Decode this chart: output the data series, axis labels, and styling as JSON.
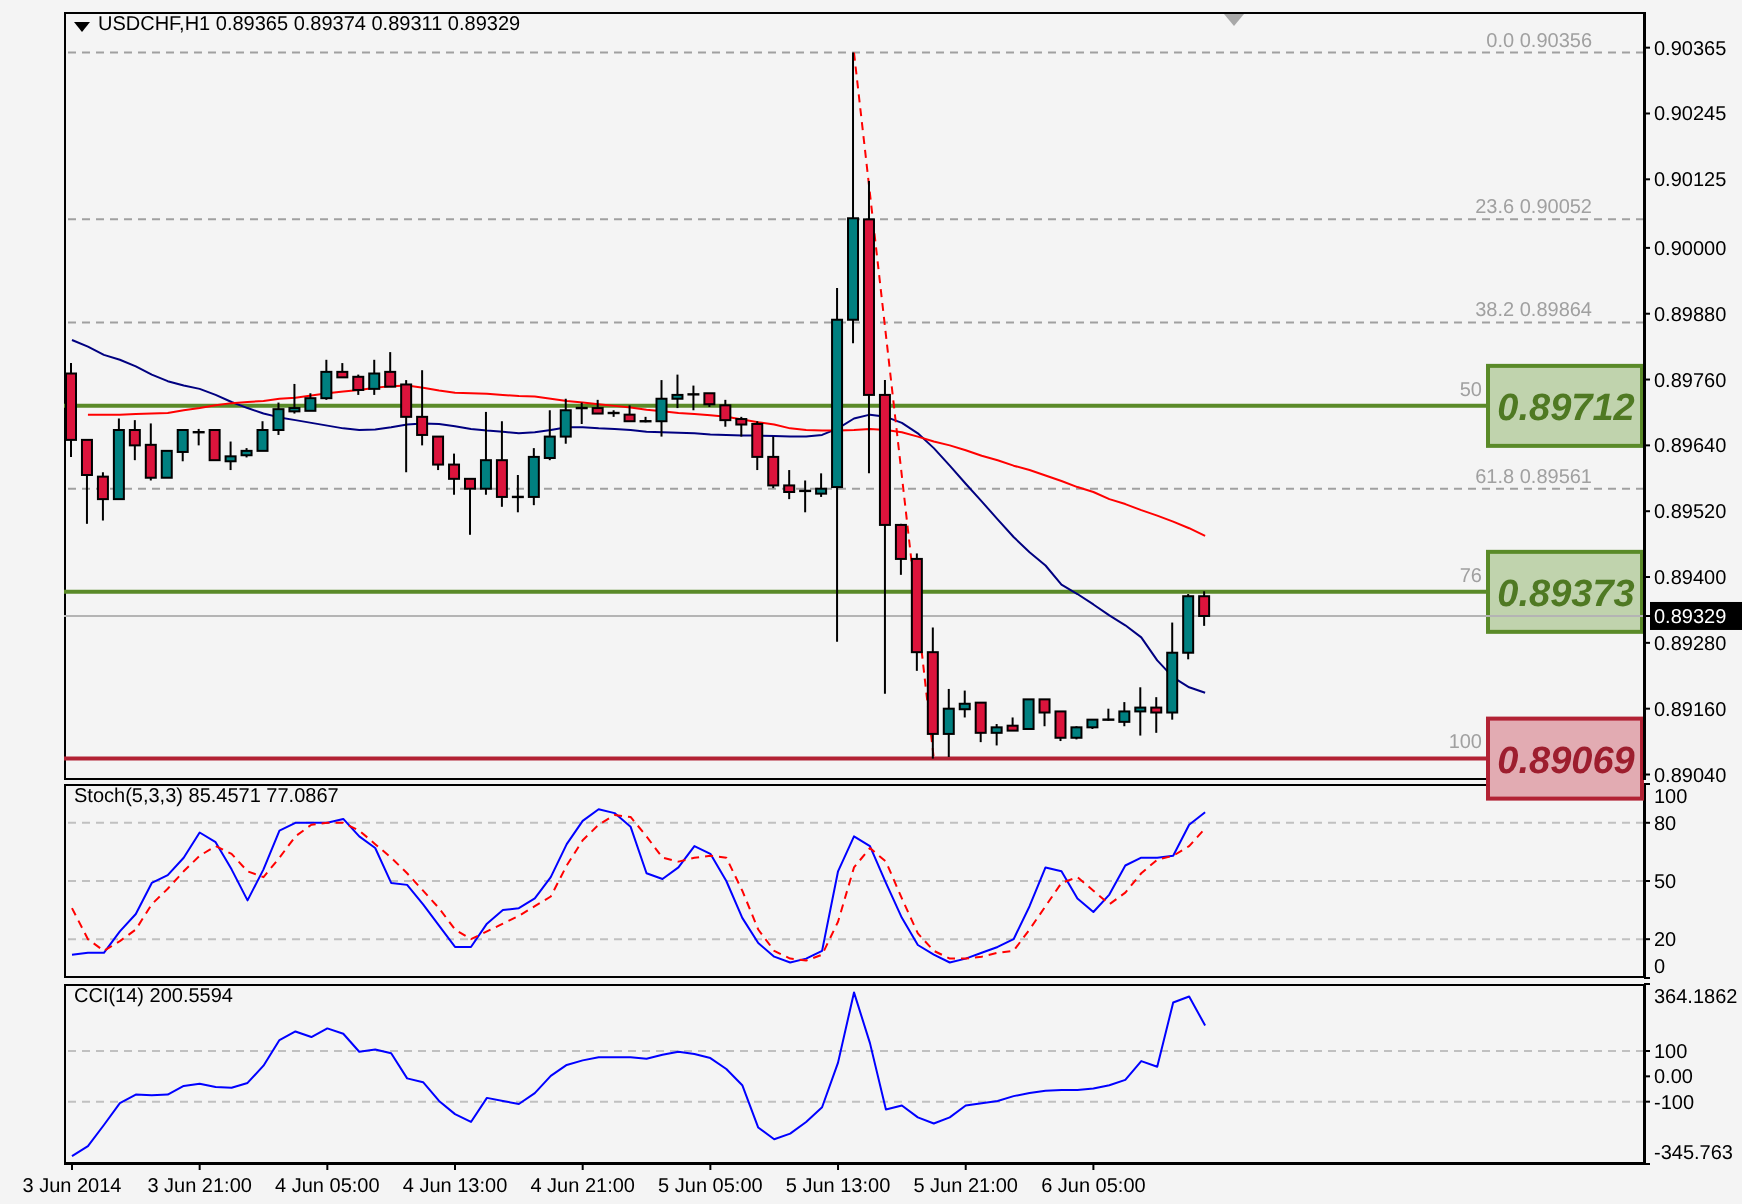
{
  "chart_data": [
    {
      "type": "candlestick",
      "title": "USDCHF,H1 0.89365 0.89374 0.89311 0.89329",
      "x": [
        "2014-06-03T13:00",
        "2014-06-03T14:00",
        "2014-06-03T15:00",
        "2014-06-03T16:00",
        "2014-06-03T17:00",
        "2014-06-03T18:00",
        "2014-06-03T19:00",
        "2014-06-03T20:00",
        "2014-06-03T21:00",
        "2014-06-03T22:00",
        "2014-06-03T23:00",
        "2014-06-04T00:00",
        "2014-06-04T01:00",
        "2014-06-04T02:00",
        "2014-06-04T03:00",
        "2014-06-04T04:00",
        "2014-06-04T05:00",
        "2014-06-04T06:00",
        "2014-06-04T07:00",
        "2014-06-04T08:00",
        "2014-06-04T09:00",
        "2014-06-04T10:00",
        "2014-06-04T11:00",
        "2014-06-04T12:00",
        "2014-06-04T13:00",
        "2014-06-04T14:00",
        "2014-06-04T15:00",
        "2014-06-04T16:00",
        "2014-06-04T17:00",
        "2014-06-04T18:00",
        "2014-06-04T19:00",
        "2014-06-04T20:00",
        "2014-06-04T21:00",
        "2014-06-04T22:00",
        "2014-06-04T23:00",
        "2014-06-05T00:00",
        "2014-06-05T01:00",
        "2014-06-05T02:00",
        "2014-06-05T03:00",
        "2014-06-05T04:00",
        "2014-06-05T05:00",
        "2014-06-05T06:00",
        "2014-06-05T07:00",
        "2014-06-05T08:00",
        "2014-06-05T09:00",
        "2014-06-05T10:00",
        "2014-06-05T11:00",
        "2014-06-05T12:00",
        "2014-06-05T13:00",
        "2014-06-05T14:00",
        "2014-06-05T15:00",
        "2014-06-05T16:00",
        "2014-06-05T17:00",
        "2014-06-05T18:00",
        "2014-06-05T19:00",
        "2014-06-05T20:00",
        "2014-06-05T21:00",
        "2014-06-05T22:00",
        "2014-06-05T23:00",
        "2014-06-06T00:00",
        "2014-06-06T01:00",
        "2014-06-06T02:00",
        "2014-06-06T03:00",
        "2014-06-06T04:00",
        "2014-06-06T05:00",
        "2014-06-06T06:00",
        "2014-06-06T07:00",
        "2014-06-06T08:00",
        "2014-06-06T09:00",
        "2014-06-06T10:00",
        "2014-06-06T11:00",
        "2014-06-06T12:00"
      ],
      "ohlc": [
        [
          0.89771,
          0.8979,
          0.89619,
          0.8965
        ],
        [
          0.8965,
          0.8965,
          0.89497,
          0.89586
        ],
        [
          0.89583,
          0.89591,
          0.89503,
          0.89542
        ],
        [
          0.89542,
          0.89689,
          0.89542,
          0.89668
        ],
        [
          0.89668,
          0.89686,
          0.89613,
          0.8964
        ],
        [
          0.89641,
          0.8968,
          0.89576,
          0.89581
        ],
        [
          0.89581,
          0.8963,
          0.89581,
          0.8963
        ],
        [
          0.89628,
          0.89668,
          0.89611,
          0.89668
        ],
        [
          0.89664,
          0.8967,
          0.8964,
          0.89664
        ],
        [
          0.89668,
          0.89668,
          0.89613,
          0.89613
        ],
        [
          0.89611,
          0.89647,
          0.89595,
          0.8962
        ],
        [
          0.89622,
          0.89635,
          0.89618,
          0.8963
        ],
        [
          0.8963,
          0.89684,
          0.8963,
          0.89668
        ],
        [
          0.89668,
          0.89718,
          0.89659,
          0.89706
        ],
        [
          0.89702,
          0.89752,
          0.89698,
          0.89708
        ],
        [
          0.89703,
          0.89735,
          0.89703,
          0.89726
        ],
        [
          0.89726,
          0.89796,
          0.89723,
          0.89774
        ],
        [
          0.89774,
          0.8979,
          0.89764,
          0.89764
        ],
        [
          0.89765,
          0.89769,
          0.89732,
          0.89741
        ],
        [
          0.89743,
          0.89796,
          0.89732,
          0.89771
        ],
        [
          0.89774,
          0.8981,
          0.89747,
          0.89747
        ],
        [
          0.89751,
          0.89759,
          0.89591,
          0.89692
        ],
        [
          0.89692,
          0.89777,
          0.8964,
          0.89659
        ],
        [
          0.89656,
          0.89656,
          0.89595,
          0.89605
        ],
        [
          0.89605,
          0.89625,
          0.8955,
          0.89579
        ],
        [
          0.89579,
          0.89579,
          0.89477,
          0.89561
        ],
        [
          0.89561,
          0.89701,
          0.8955,
          0.89613
        ],
        [
          0.89613,
          0.89684,
          0.89528,
          0.89546
        ],
        [
          0.89546,
          0.89586,
          0.89518,
          0.89546
        ],
        [
          0.89546,
          0.89635,
          0.89531,
          0.89619
        ],
        [
          0.89617,
          0.89704,
          0.89613,
          0.89656
        ],
        [
          0.89656,
          0.89725,
          0.89643,
          0.89704
        ],
        [
          0.89706,
          0.89718,
          0.89679,
          0.89708
        ],
        [
          0.89708,
          0.89723,
          0.89698,
          0.89698
        ],
        [
          0.89699,
          0.89704,
          0.89692,
          0.89696
        ],
        [
          0.89696,
          0.89713,
          0.89684,
          0.89684
        ],
        [
          0.89684,
          0.89692,
          0.89682,
          0.89684
        ],
        [
          0.89684,
          0.89759,
          0.89656,
          0.89725
        ],
        [
          0.89725,
          0.89769,
          0.89708,
          0.89732
        ],
        [
          0.89732,
          0.89749,
          0.89704,
          0.89733
        ],
        [
          0.89735,
          0.89735,
          0.8971,
          0.89715
        ],
        [
          0.89713,
          0.89723,
          0.89674,
          0.89686
        ],
        [
          0.89688,
          0.89692,
          0.89656,
          0.89678
        ],
        [
          0.89679,
          0.89684,
          0.89595,
          0.89619
        ],
        [
          0.89619,
          0.89656,
          0.89562,
          0.89567
        ],
        [
          0.89567,
          0.89595,
          0.89542,
          0.89555
        ],
        [
          0.89555,
          0.89576,
          0.89518,
          0.89557
        ],
        [
          0.89552,
          0.89589,
          0.89546,
          0.89561
        ],
        [
          0.89564,
          0.89927,
          0.89282,
          0.89869
        ],
        [
          0.89869,
          0.90356,
          0.89826,
          0.90054
        ],
        [
          0.90052,
          0.90122,
          0.89589,
          0.89732
        ],
        [
          0.89732,
          0.89759,
          0.89187,
          0.89495
        ],
        [
          0.89495,
          0.89497,
          0.89404,
          0.89433
        ],
        [
          0.89433,
          0.89443,
          0.89229,
          0.89263
        ],
        [
          0.89263,
          0.89308,
          0.89069,
          0.89114
        ],
        [
          0.89114,
          0.89196,
          0.89072,
          0.8916
        ],
        [
          0.89159,
          0.89193,
          0.89144,
          0.89169
        ],
        [
          0.89171,
          0.89171,
          0.89099,
          0.89116
        ],
        [
          0.89116,
          0.89132,
          0.89093,
          0.89126
        ],
        [
          0.89129,
          0.89144,
          0.8912,
          0.8912
        ],
        [
          0.89123,
          0.89177,
          0.89123,
          0.89177
        ],
        [
          0.89177,
          0.89177,
          0.89128,
          0.89153
        ],
        [
          0.89155,
          0.89155,
          0.89101,
          0.89107
        ],
        [
          0.89107,
          0.89128,
          0.89104,
          0.89126
        ],
        [
          0.89126,
          0.8914,
          0.89123,
          0.8914
        ],
        [
          0.8914,
          0.8916,
          0.89138,
          0.8914
        ],
        [
          0.89136,
          0.89172,
          0.89128,
          0.89155
        ],
        [
          0.89155,
          0.89199,
          0.89111,
          0.89162
        ],
        [
          0.89162,
          0.89181,
          0.89116,
          0.89153
        ],
        [
          0.89153,
          0.89317,
          0.8914,
          0.89262
        ],
        [
          0.89262,
          0.89369,
          0.8925,
          0.89365
        ],
        [
          0.89365,
          0.89374,
          0.89311,
          0.89329
        ]
      ],
      "colors": [
        "#dc143c",
        "#dc143c",
        "#dc143c",
        "#008080",
        "#dc143c",
        "#dc143c",
        "#008080",
        "#008080",
        "#000000",
        "#dc143c",
        "#008080",
        "#008080",
        "#008080",
        "#008080",
        "#008080",
        "#008080",
        "#008080",
        "#dc143c",
        "#dc143c",
        "#008080",
        "#dc143c",
        "#dc143c",
        "#dc143c",
        "#dc143c",
        "#dc143c",
        "#dc143c",
        "#008080",
        "#dc143c",
        "#000000",
        "#008080",
        "#008080",
        "#008080",
        "#000000",
        "#dc143c",
        "#000000",
        "#dc143c",
        "#000000",
        "#008080",
        "#008080",
        "#000000",
        "#dc143c",
        "#dc143c",
        "#dc143c",
        "#dc143c",
        "#dc143c",
        "#dc143c",
        "#000000",
        "#008080",
        "#008080",
        "#008080",
        "#dc143c",
        "#dc143c",
        "#dc143c",
        "#dc143c",
        "#dc143c",
        "#008080",
        "#008080",
        "#dc143c",
        "#008080",
        "#dc143c",
        "#008080",
        "#dc143c",
        "#dc143c",
        "#008080",
        "#008080",
        "#000000",
        "#008080",
        "#008080",
        "#dc143c",
        "#008080",
        "#008080",
        "#dc143c"
      ],
      "series": [
        {
          "type": "line",
          "color": "#000080",
          "values": [
            0.89832,
            0.8982,
            0.89805,
            0.89796,
            0.89784,
            0.89769,
            0.89757,
            0.89749,
            0.89743,
            0.89732,
            0.89719,
            0.89708,
            0.89698,
            0.89691,
            0.89686,
            0.89681,
            0.89676,
            0.89671,
            0.89668,
            0.89669,
            0.89673,
            0.89678,
            0.8968,
            0.89679,
            0.89675,
            0.8967,
            0.89667,
            0.89665,
            0.89662,
            0.89664,
            0.89668,
            0.89673,
            0.89673,
            0.89671,
            0.8967,
            0.89668,
            0.89665,
            0.89664,
            0.89663,
            0.89662,
            0.8966,
            0.89659,
            0.89658,
            0.89658,
            0.89657,
            0.89656,
            0.89656,
            0.89659,
            0.89671,
            0.89689,
            0.89696,
            0.89692,
            0.89681,
            0.89662,
            0.89635,
            0.89603,
            0.8957,
            0.89538,
            0.89505,
            0.89473,
            0.89445,
            0.89421,
            0.89386,
            0.89369,
            0.8935,
            0.8933,
            0.89312,
            0.8929,
            0.89248,
            0.89217,
            0.89199,
            0.89189
          ]
        },
        {
          "type": "line",
          "color": "#ff0000",
          "values": [
            null,
            0.89696,
            0.89696,
            0.89696,
            0.89697,
            0.89698,
            0.89699,
            0.89704,
            0.89708,
            0.89713,
            0.89717,
            0.89719,
            0.89721,
            0.89725,
            0.89727,
            0.89731,
            0.89735,
            0.89738,
            0.89741,
            0.89745,
            0.89748,
            0.89749,
            0.89745,
            0.8974,
            0.89736,
            0.89735,
            0.89734,
            0.89732,
            0.8973,
            0.89729,
            0.89725,
            0.89721,
            0.89718,
            0.89715,
            0.89712,
            0.89709,
            0.89705,
            0.89702,
            0.89699,
            0.89697,
            0.89695,
            0.89692,
            0.89687,
            0.89682,
            0.89678,
            0.89671,
            0.89668,
            0.89667,
            0.89667,
            0.89668,
            0.8967,
            0.89668,
            0.89664,
            0.89656,
            0.89647,
            0.8964,
            0.89631,
            0.89621,
            0.89613,
            0.89603,
            0.89595,
            0.89585,
            0.89575,
            0.89564,
            0.89555,
            0.89542,
            0.89533,
            0.89522,
            0.89512,
            0.89501,
            0.89489,
            0.89475
          ]
        },
        {
          "type": "line",
          "color": "#ff0000",
          "line_style": "dashed",
          "x": [
            "2014-06-05T14:00",
            "2014-06-05T19:00"
          ],
          "values": [
            0.90356,
            0.89069
          ]
        }
      ],
      "xlim": [
        "2014-06-03T12:30",
        "2014-06-07T15:30"
      ],
      "ylim": [
        0.8903,
        0.9043
      ],
      "yticks": [
        {
          "value": 0.8904,
          "label": "0.89040"
        },
        {
          "value": 0.8916,
          "label": "0.89160"
        },
        {
          "value": 0.8928,
          "label": "0.89280"
        },
        0.89329,
        {
          "value": 0.894,
          "label": "0.89400"
        },
        {
          "value": 0.8952,
          "label": "0.89520"
        },
        {
          "value": 0.8964,
          "label": "0.89640"
        },
        {
          "value": 0.8976,
          "label": "0.89760"
        },
        {
          "value": 0.8988,
          "label": "0.89880"
        },
        {
          "value": 0.9,
          "label": "0.90000"
        },
        0.90125,
        0.90245,
        0.90365
      ],
      "tick_labels": "y",
      "ref_lines": [
        {
          "axis": "y",
          "value": 0.90356,
          "label": "0.0 0.90356",
          "color": "#a0a0a0",
          "line_style": "dashed"
        },
        {
          "axis": "y",
          "value": 0.90052,
          "label": "23.6 0.90052",
          "color": "#a0a0a0",
          "line_style": "dashed"
        },
        {
          "axis": "y",
          "value": 0.89864,
          "label": "38.2 0.89864",
          "color": "#a0a0a0",
          "line_style": "dashed"
        },
        {
          "axis": "y",
          "value": 0.89561,
          "label": "61.8 0.89561",
          "color": "#a0a0a0",
          "line_style": "dashed"
        },
        {
          "axis": "y",
          "value": 0.89712,
          "label": "0.89712",
          "color": "#5a8a28"
        },
        {
          "axis": "y",
          "value": 0.89373,
          "label": "0.89373",
          "color": "#5a8a28"
        },
        {
          "axis": "y",
          "value": 0.89069,
          "label": "0.89069",
          "color": "#b22234"
        },
        {
          "axis": "y",
          "value": 0.89329,
          "color": "#b4b4b4"
        }
      ],
      "annotations": [
        {
          "text": "50",
          "y": 0.89712
        },
        {
          "text": "76",
          "y": 0.89373
        },
        {
          "text": "100",
          "y": 0.89069
        }
      ]
    },
    {
      "type": "line",
      "title": "Stoch(5,3,3) 85.4571 77.0867",
      "x": [
        "2014-06-03T13:00",
        "2014-06-03T14:00",
        "2014-06-03T15:00",
        "2014-06-03T16:00",
        "2014-06-03T17:00",
        "2014-06-03T18:00",
        "2014-06-03T19:00",
        "2014-06-03T20:00",
        "2014-06-03T21:00",
        "2014-06-03T22:00",
        "2014-06-03T23:00",
        "2014-06-04T00:00",
        "2014-06-04T01:00",
        "2014-06-04T02:00",
        "2014-06-04T03:00",
        "2014-06-04T04:00",
        "2014-06-04T05:00",
        "2014-06-04T06:00",
        "2014-06-04T07:00",
        "2014-06-04T08:00",
        "2014-06-04T09:00",
        "2014-06-04T10:00",
        "2014-06-04T11:00",
        "2014-06-04T12:00",
        "2014-06-04T13:00",
        "2014-06-04T14:00",
        "2014-06-04T15:00",
        "2014-06-04T16:00",
        "2014-06-04T17:00",
        "2014-06-04T18:00",
        "2014-06-04T19:00",
        "2014-06-04T20:00",
        "2014-06-04T21:00",
        "2014-06-04T22:00",
        "2014-06-04T23:00",
        "2014-06-05T00:00",
        "2014-06-05T01:00",
        "2014-06-05T02:00",
        "2014-06-05T03:00",
        "2014-06-05T04:00",
        "2014-06-05T05:00",
        "2014-06-05T06:00",
        "2014-06-05T07:00",
        "2014-06-05T08:00",
        "2014-06-05T09:00",
        "2014-06-05T10:00",
        "2014-06-05T11:00",
        "2014-06-05T12:00",
        "2014-06-05T13:00",
        "2014-06-05T14:00",
        "2014-06-05T15:00",
        "2014-06-05T16:00",
        "2014-06-05T17:00",
        "2014-06-05T18:00",
        "2014-06-05T19:00",
        "2014-06-05T20:00",
        "2014-06-05T21:00",
        "2014-06-05T22:00",
        "2014-06-05T23:00",
        "2014-06-06T00:00",
        "2014-06-06T01:00",
        "2014-06-06T02:00",
        "2014-06-06T03:00",
        "2014-06-06T04:00",
        "2014-06-06T05:00",
        "2014-06-06T06:00",
        "2014-06-06T07:00",
        "2014-06-06T08:00",
        "2014-06-06T09:00",
        "2014-06-06T10:00",
        "2014-06-06T11:00",
        "2014-06-06T12:00"
      ],
      "series": [
        {
          "color": "#0000ff",
          "values": [
            12,
            13,
            13,
            24,
            33,
            49,
            53,
            62,
            75,
            70,
            56,
            40,
            56,
            76,
            80,
            80,
            80,
            82,
            73,
            67,
            49,
            48,
            38,
            27,
            16,
            16,
            28,
            35,
            36,
            41,
            52,
            69,
            81,
            87,
            85,
            78,
            54,
            51,
            57,
            68,
            64,
            50,
            31,
            18,
            11,
            8,
            10,
            14,
            55,
            73,
            68,
            49,
            31,
            17,
            12,
            8,
            10,
            13,
            16,
            20,
            37,
            57,
            55,
            41,
            34,
            43,
            58,
            62,
            62,
            63,
            79,
            85.4571
          ]
        },
        {
          "color": "#ff0000",
          "line_style": "dashed",
          "values": [
            36,
            20,
            14,
            19,
            25,
            38,
            46,
            55,
            63,
            68,
            64,
            55,
            52,
            62,
            73,
            79,
            80,
            80,
            76,
            69,
            62,
            54,
            45,
            36,
            25,
            20,
            24,
            28,
            32,
            37,
            42,
            58,
            71,
            79,
            84,
            83,
            73,
            62,
            60,
            62,
            63,
            62,
            45,
            25,
            14,
            10,
            9,
            12,
            29,
            57,
            67,
            60,
            41,
            23,
            14,
            10,
            10,
            11,
            13,
            14,
            25,
            37,
            49,
            52,
            45,
            38,
            44,
            54,
            61,
            63,
            68,
            77.0867
          ]
        }
      ],
      "xlim": [
        "2014-06-03T12:30",
        "2014-06-07T15:30"
      ],
      "ylim": [
        0,
        100
      ],
      "yticks": [
        0,
        20,
        50,
        80,
        100
      ],
      "tick_labels": "y",
      "ref_lines": [
        {
          "axis": "y",
          "value": 80,
          "color": "#c0c0c0",
          "line_style": "dashed"
        },
        {
          "axis": "y",
          "value": 50,
          "color": "#c0c0c0",
          "line_style": "dashed"
        },
        {
          "axis": "y",
          "value": 20,
          "color": "#c0c0c0",
          "line_style": "dashed"
        }
      ]
    },
    {
      "type": "line",
      "title": "CCI(14) 200.5594",
      "x": [
        "2014-06-03T13:00",
        "2014-06-03T14:00",
        "2014-06-03T15:00",
        "2014-06-03T16:00",
        "2014-06-03T17:00",
        "2014-06-03T18:00",
        "2014-06-03T19:00",
        "2014-06-03T20:00",
        "2014-06-03T21:00",
        "2014-06-03T22:00",
        "2014-06-03T23:00",
        "2014-06-04T00:00",
        "2014-06-04T01:00",
        "2014-06-04T02:00",
        "2014-06-04T03:00",
        "2014-06-04T04:00",
        "2014-06-04T05:00",
        "2014-06-04T06:00",
        "2014-06-04T07:00",
        "2014-06-04T08:00",
        "2014-06-04T09:00",
        "2014-06-04T10:00",
        "2014-06-04T11:00",
        "2014-06-04T12:00",
        "2014-06-04T13:00",
        "2014-06-04T14:00",
        "2014-06-04T15:00",
        "2014-06-04T16:00",
        "2014-06-04T17:00",
        "2014-06-04T18:00",
        "2014-06-04T19:00",
        "2014-06-04T20:00",
        "2014-06-04T21:00",
        "2014-06-04T22:00",
        "2014-06-04T23:00",
        "2014-06-05T00:00",
        "2014-06-05T01:00",
        "2014-06-05T02:00",
        "2014-06-05T03:00",
        "2014-06-05T04:00",
        "2014-06-05T05:00",
        "2014-06-05T06:00",
        "2014-06-05T07:00",
        "2014-06-05T08:00",
        "2014-06-05T09:00",
        "2014-06-05T10:00",
        "2014-06-05T11:00",
        "2014-06-05T12:00",
        "2014-06-05T13:00",
        "2014-06-05T14:00",
        "2014-06-05T15:00",
        "2014-06-05T16:00",
        "2014-06-05T17:00",
        "2014-06-05T18:00",
        "2014-06-05T19:00",
        "2014-06-05T20:00",
        "2014-06-05T21:00",
        "2014-06-05T22:00",
        "2014-06-05T23:00",
        "2014-06-06T00:00",
        "2014-06-06T01:00",
        "2014-06-06T02:00",
        "2014-06-06T03:00",
        "2014-06-06T04:00",
        "2014-06-06T05:00",
        "2014-06-06T06:00",
        "2014-06-06T07:00",
        "2014-06-06T08:00",
        "2014-06-06T09:00",
        "2014-06-06T10:00",
        "2014-06-06T11:00",
        "2014-06-06T12:00"
      ],
      "series": [
        {
          "color": "#0000ff",
          "values": [
            -315,
            -275,
            -192,
            -106,
            -72,
            -75,
            -72,
            -38,
            -29,
            -42,
            -45,
            -26,
            42,
            143,
            177,
            155,
            189,
            168,
            97,
            106,
            91,
            -8,
            -23,
            -97,
            -149,
            -180,
            -85,
            -97,
            -109,
            -66,
            2,
            45,
            63,
            75,
            75,
            75,
            69,
            85,
            97,
            88,
            72,
            29,
            -35,
            -202,
            -248,
            -226,
            -180,
            -122,
            54,
            331,
            131,
            -131,
            -115,
            -162,
            -186,
            -162,
            -115,
            -106,
            -97,
            -78,
            -66,
            -57,
            -54,
            -54,
            -48,
            -35,
            -14,
            60,
            38,
            291,
            315,
            200.5594
          ]
        }
      ],
      "xlim": [
        "2014-06-03T12:30",
        "2014-06-07T15:30"
      ],
      "xticks": [
        {
          "value": "2014-06-03T13:00",
          "label": "3 Jun 2014"
        },
        {
          "value": "2014-06-03T21:00",
          "label": "3 Jun 21:00"
        },
        {
          "value": "2014-06-04T05:00",
          "label": "4 Jun 05:00"
        },
        {
          "value": "2014-06-04T13:00",
          "label": "4 Jun 13:00"
        },
        {
          "value": "2014-06-04T21:00",
          "label": "4 Jun 21:00"
        },
        {
          "value": "2014-06-05T05:00",
          "label": "5 Jun 05:00"
        },
        {
          "value": "2014-06-05T13:00",
          "label": "5 Jun 13:00"
        },
        {
          "value": "2014-06-05T21:00",
          "label": "5 Jun 21:00"
        },
        {
          "value": "2014-06-06T05:00",
          "label": "6 Jun 05:00"
        }
      ],
      "ylim": [
        -345.763,
        364.1862
      ],
      "yticks": [
        -345.763,
        -100,
        {
          "value": 0,
          "label": "0.00"
        },
        100,
        364.1862
      ],
      "ref_lines": [
        {
          "axis": "y",
          "value": 100,
          "color": "#c0c0c0",
          "line_style": "dashed"
        },
        {
          "axis": "y",
          "value": -100,
          "color": "#c0c0c0",
          "line_style": "dashed"
        }
      ]
    }
  ]
}
